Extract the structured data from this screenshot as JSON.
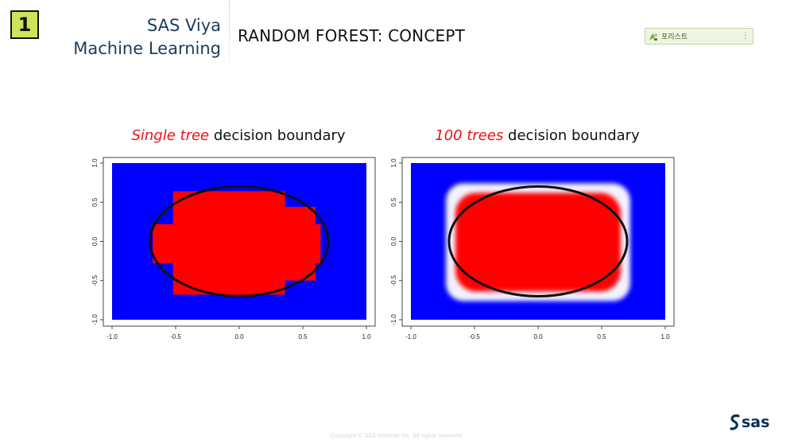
{
  "badge": {
    "number": "1"
  },
  "brand": {
    "line1": "SAS Viya",
    "line2": "Machine Learning"
  },
  "slide": {
    "title": "RANDOM FOREST: CONCEPT"
  },
  "note_widget": {
    "icon": "note-icon",
    "label": "포리스트",
    "menu_icon": "kebab-icon"
  },
  "captions": {
    "left": {
      "highlight": "Single tree",
      "rest": " decision boundary"
    },
    "right": {
      "highlight": "100 trees",
      "rest": " decision boundary"
    }
  },
  "colors": {
    "class_a": "#0000ff",
    "class_b": "#ff0000",
    "accent": "#ee1111",
    "brand": "#1d3c5c",
    "badge": "#cde35a"
  },
  "chart_data": [
    {
      "type": "heatmap",
      "title": "Single tree decision boundary",
      "xlim": [
        -1.0,
        1.0
      ],
      "ylim": [
        -1.0,
        1.0
      ],
      "x_ticks": [
        "-1.0",
        "-0.5",
        "0.0",
        "0.5",
        "1.0"
      ],
      "y_ticks": [
        "-1.0",
        "-0.5",
        "0.0",
        "0.5",
        "1.0"
      ],
      "background_class_color": "#0000ff",
      "region_class_color": "#ff0000",
      "region_rectangles": [
        {
          "x": [
            -0.52,
            0.36
          ],
          "y": [
            -0.68,
            0.64
          ]
        },
        {
          "x": [
            -0.68,
            0.64
          ],
          "y": [
            -0.28,
            0.22
          ]
        },
        {
          "x": [
            -0.52,
            0.6
          ],
          "y": [
            -0.44,
            0.44
          ]
        },
        {
          "x": [
            0.36,
            0.6
          ],
          "y": [
            -0.5,
            0.44
          ]
        }
      ],
      "true_boundary": {
        "shape": "ellipse",
        "center": [
          0.0,
          0.0
        ],
        "semi_axis_x": 0.7,
        "semi_axis_y": 0.7
      },
      "grid": false
    },
    {
      "type": "heatmap",
      "title": "100 trees decision boundary",
      "xlim": [
        -1.0,
        1.0
      ],
      "ylim": [
        -1.0,
        1.0
      ],
      "x_ticks": [
        "-1.0",
        "-0.5",
        "0.0",
        "0.5",
        "1.0"
      ],
      "y_ticks": [
        "-1.0",
        "-0.5",
        "0.0",
        "0.5",
        "1.0"
      ],
      "background_class_color": "#0000ff",
      "region_class_color": "#ff0000",
      "true_boundary": {
        "shape": "ellipse",
        "center": [
          0.0,
          0.0
        ],
        "semi_axis_x": 0.7,
        "semi_axis_y": 0.7
      },
      "grid": false
    }
  ],
  "footer": {
    "copyright": "Copyright © SAS Institute Inc. All rights reserved.",
    "logo_text": "sas"
  }
}
